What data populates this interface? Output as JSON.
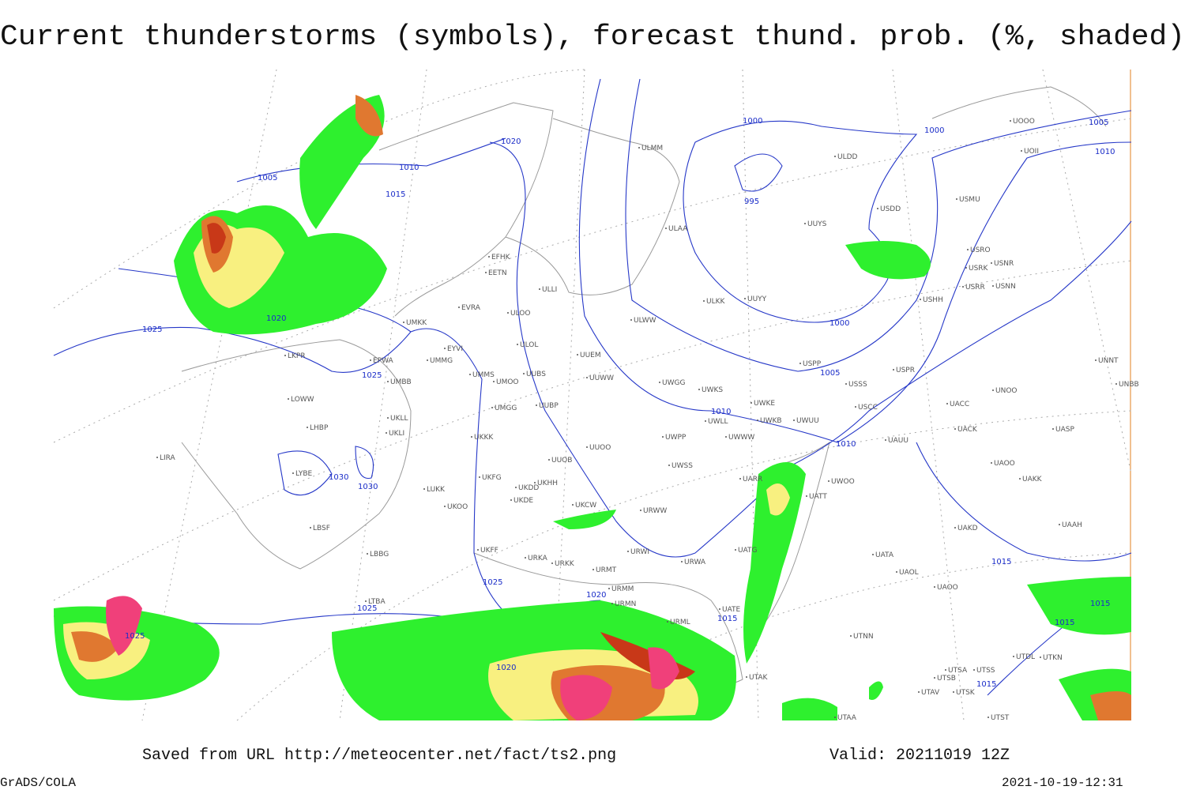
{
  "title": "Current thunderstorms (symbols), forecast thund. prob. (%, shaded)",
  "stations": [
    {
      "label": "ULMM"
    },
    {
      "label": "ULDD"
    },
    {
      "label": "USDD"
    },
    {
      "label": "USMU"
    },
    {
      "label": "UOOO"
    },
    {
      "label": "UOII"
    },
    {
      "label": "ULAA"
    },
    {
      "label": "UUYS"
    },
    {
      "label": "USRO"
    },
    {
      "label": "USRK"
    },
    {
      "label": "USNR"
    },
    {
      "label": "USRR"
    },
    {
      "label": "USNN"
    },
    {
      "label": "USHH"
    },
    {
      "label": "EFHK"
    },
    {
      "label": "EETN"
    },
    {
      "label": "ULLI"
    },
    {
      "label": "EVRA"
    },
    {
      "label": "ULOO"
    },
    {
      "label": "ULKK"
    },
    {
      "label": "UUYY"
    },
    {
      "label": "ULWW"
    },
    {
      "label": "UMKK"
    },
    {
      "label": "EYVI"
    },
    {
      "label": "ULOL"
    },
    {
      "label": "UUEM"
    },
    {
      "label": "EPWA"
    },
    {
      "label": "UMMG"
    },
    {
      "label": "UUWW"
    },
    {
      "label": "UMMS"
    },
    {
      "label": "UMOO"
    },
    {
      "label": "UUBS"
    },
    {
      "label": "UWGG"
    },
    {
      "label": "UWKS"
    },
    {
      "label": "USPP"
    },
    {
      "label": "USPR"
    },
    {
      "label": "USSS"
    },
    {
      "label": "UNOO"
    },
    {
      "label": "UNNT"
    },
    {
      "label": "UNBB"
    },
    {
      "label": "LKPR"
    },
    {
      "label": "UMBB"
    },
    {
      "label": "LOWW"
    },
    {
      "label": "UMGG"
    },
    {
      "label": "UUBP"
    },
    {
      "label": "UWKE"
    },
    {
      "label": "UWKB"
    },
    {
      "label": "UWUU"
    },
    {
      "label": "USCC"
    },
    {
      "label": "UACC"
    },
    {
      "label": "UKLL"
    },
    {
      "label": "UKLI"
    },
    {
      "label": "LHBP"
    },
    {
      "label": "UKKK"
    },
    {
      "label": "UWLL"
    },
    {
      "label": "UWPP"
    },
    {
      "label": "UWWW"
    },
    {
      "label": "UAUU"
    },
    {
      "label": "UACK"
    },
    {
      "label": "UASP"
    },
    {
      "label": "UUOO"
    },
    {
      "label": "LIRA"
    },
    {
      "label": "UUOB"
    },
    {
      "label": "UWSS"
    },
    {
      "label": "UAOO"
    },
    {
      "label": "UAKK"
    },
    {
      "label": "LYBE"
    },
    {
      "label": "UKHH"
    },
    {
      "label": "UKDD"
    },
    {
      "label": "UKFG"
    },
    {
      "label": "UARR"
    },
    {
      "label": "UWOO"
    },
    {
      "label": "UATT"
    },
    {
      "label": "LUKK"
    },
    {
      "label": "UKDE"
    },
    {
      "label": "UKCW"
    },
    {
      "label": "URWW"
    },
    {
      "label": "UKOO"
    },
    {
      "label": "UAKD"
    },
    {
      "label": "UAAH"
    },
    {
      "label": "LBSF"
    },
    {
      "label": "UKFF"
    },
    {
      "label": "LBBG"
    },
    {
      "label": "URKA"
    },
    {
      "label": "URKK"
    },
    {
      "label": "URWI"
    },
    {
      "label": "UATG"
    },
    {
      "label": "UATA"
    },
    {
      "label": "URWA"
    },
    {
      "label": "URMT"
    },
    {
      "label": "UAOL"
    },
    {
      "label": "UAOO"
    },
    {
      "label": "URMM"
    },
    {
      "label": "URMN"
    },
    {
      "label": "UATE"
    },
    {
      "label": "URML"
    },
    {
      "label": "LTBA"
    },
    {
      "label": "UTNN"
    },
    {
      "label": "UTAK"
    },
    {
      "label": "UTSA"
    },
    {
      "label": "UTSS"
    },
    {
      "label": "UTSB"
    },
    {
      "label": "UTAV"
    },
    {
      "label": "UTSK"
    },
    {
      "label": "UTST"
    },
    {
      "label": "UTAA"
    },
    {
      "label": "UTDL"
    },
    {
      "label": "UTKN"
    }
  ],
  "isobars": [
    1000,
    1005,
    1000,
    1020,
    1010,
    1010,
    1005,
    995,
    1015,
    1020,
    1025,
    1000,
    1025,
    1005,
    1010,
    1010,
    1030,
    1030,
    1015,
    1025,
    1020,
    1025,
    1015,
    1015,
    1025,
    1015,
    1020,
    1015
  ],
  "footer": {
    "saved": "Saved from URL http://meteocenter.net/fact/ts2.png",
    "valid": "Valid: 20211019 12Z",
    "software": "GrADS/COLA",
    "timestamp": "2021-10-19-12:31"
  }
}
